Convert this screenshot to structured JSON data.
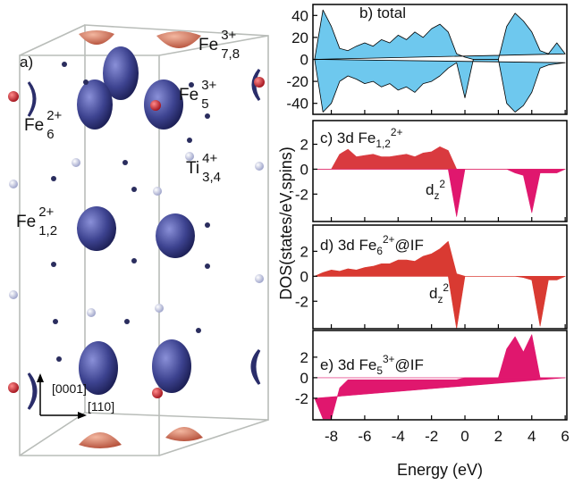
{
  "structure": {
    "panel": "a)",
    "labels": [
      {
        "text": "Fe",
        "sup": "3+",
        "sub": "7,8"
      },
      {
        "text": "Fe",
        "sup": "3+",
        "sub": "5"
      },
      {
        "text": "Fe",
        "sup": "2+",
        "sub": "6"
      },
      {
        "text": "Ti",
        "sup": "4+",
        "sub": "3,4"
      },
      {
        "text": "Fe",
        "sup": "2+",
        "sub": "1,2"
      }
    ],
    "directions": [
      "[0001]",
      "[110]"
    ]
  },
  "ylabel": "DOS(states/eV,spins)",
  "chart_data": [
    {
      "type": "area",
      "title": {
        "text": "b) total"
      },
      "stroke": "#000000",
      "x": [
        -9,
        -8.5,
        -8,
        -7.5,
        -7,
        -6.5,
        -6,
        -5.5,
        -5,
        -4.5,
        -4,
        -3.5,
        -3,
        -2.5,
        -2,
        -1.5,
        -1,
        -0.5,
        0,
        0.5,
        1,
        1.5,
        2,
        2.5,
        3,
        3.5,
        4,
        4.5,
        5,
        5.5,
        6
      ],
      "series": [
        {
          "color": "#6ec8ee",
          "values": [
            0,
            45,
            30,
            10,
            8,
            12,
            15,
            12,
            18,
            15,
            22,
            18,
            25,
            20,
            28,
            32,
            25,
            5,
            2,
            0,
            0,
            0,
            0,
            30,
            42,
            35,
            25,
            8,
            5,
            15,
            5
          ]
        },
        {
          "color": "#6ec8ee",
          "values": [
            0,
            -48,
            -40,
            -20,
            -15,
            -18,
            -22,
            -20,
            -25,
            -22,
            -28,
            -25,
            -30,
            -22,
            -20,
            -15,
            -8,
            -3,
            -35,
            0,
            0,
            0,
            0,
            -40,
            -48,
            -42,
            -30,
            -8,
            -5,
            -4,
            -3
          ]
        }
      ],
      "xlim": [
        -9.1,
        6.1
      ],
      "ylim": [
        -50,
        50
      ],
      "yticks": [
        40,
        20,
        0,
        -20,
        -40
      ]
    },
    {
      "type": "area",
      "title": {
        "text": "c) 3d Fe",
        "sub": "1,2",
        "sup": "2+"
      },
      "annotations": [
        {
          "text": "d",
          "sub": "z",
          "sup": "2"
        }
      ],
      "x": [
        -9,
        -8.5,
        -8,
        -7.5,
        -7,
        -6.5,
        -6,
        -5.5,
        -5,
        -4.5,
        -4,
        -3.5,
        -3,
        -2.5,
        -2,
        -1.5,
        -1,
        -0.5,
        0,
        0.5,
        1,
        1.5,
        2,
        2.5,
        3,
        3.5,
        4,
        4.5,
        5,
        5.5,
        6
      ],
      "series": [
        {
          "color": "#d93a3f",
          "values": [
            0,
            0,
            0,
            1.2,
            1.6,
            1,
            1.1,
            1.2,
            1,
            1,
            1.1,
            1.2,
            1,
            1.3,
            1.4,
            1.8,
            1.5,
            0,
            0,
            0,
            0,
            0,
            0,
            0,
            0,
            0,
            0,
            0,
            0,
            0,
            0
          ]
        },
        {
          "color": "#e0176e",
          "values": [
            0,
            0,
            0,
            0,
            0,
            0,
            0,
            0,
            0,
            0,
            0,
            0,
            0,
            0,
            0,
            0,
            0,
            -3.8,
            0,
            0,
            0,
            0,
            0,
            0,
            -0.3,
            -0.5,
            -3.5,
            -0.3,
            -0.3,
            -0.3,
            0
          ]
        }
      ],
      "xlim": [
        -9.1,
        6.1
      ],
      "ylim": [
        -4.2,
        3.9
      ],
      "yticks": [
        2,
        0,
        -2
      ]
    },
    {
      "type": "area",
      "title": {
        "text": "d) 3d Fe",
        "sub": "6",
        "sup": "2+",
        "rest": "@IF"
      },
      "annotations": [
        {
          "text": "d",
          "sub": "z",
          "sup": "2"
        }
      ],
      "x": [
        -9,
        -8.5,
        -8,
        -7.5,
        -7,
        -6.5,
        -6,
        -5.5,
        -5,
        -4.5,
        -4,
        -3.5,
        -3,
        -2.5,
        -2,
        -1.5,
        -1,
        -0.5,
        0,
        0.5,
        1,
        1.5,
        2,
        2.5,
        3,
        3.5,
        4,
        4.5,
        5,
        5.5,
        6
      ],
      "series": [
        {
          "color": "#d93a32",
          "values": [
            0,
            0.3,
            0.5,
            0.4,
            0.6,
            0.5,
            0.7,
            0.8,
            1,
            1,
            1.3,
            1.3,
            1.2,
            1.6,
            1.8,
            2.2,
            2.8,
            0.2,
            0,
            0,
            0,
            0,
            0,
            0,
            0,
            0,
            0,
            0,
            0,
            0,
            0
          ]
        },
        {
          "color": "#d93a32",
          "values": [
            0,
            0,
            0,
            0,
            0,
            0,
            0,
            0,
            0,
            0,
            0,
            0,
            0,
            0,
            0,
            0,
            0,
            -4.2,
            0,
            0,
            0,
            0,
            0,
            0,
            0,
            -0.1,
            -0.3,
            -4.0,
            -0.3,
            -0.3,
            0
          ]
        }
      ],
      "xlim": [
        -9.1,
        6.1
      ],
      "ylim": [
        -4.2,
        4.1
      ],
      "yticks": [
        2,
        0,
        -2
      ]
    },
    {
      "type": "area",
      "title": {
        "text": "e) 3d Fe",
        "sub": "5",
        "sup": "3+",
        "rest": "@IF"
      },
      "x": [
        -9,
        -8.5,
        -8,
        -7.5,
        -7,
        -6.5,
        -6,
        -5.5,
        -5,
        -4.5,
        -4,
        -3.5,
        -3,
        -2.5,
        -2,
        -1.5,
        -1,
        -0.5,
        0,
        0.5,
        1,
        1.5,
        2,
        2.5,
        3,
        3.5,
        4,
        4.5,
        5,
        5.5,
        6
      ],
      "series": [
        {
          "color": "#e0176e",
          "values": [
            0,
            0,
            0,
            0,
            0,
            0,
            0,
            0,
            0,
            0,
            0,
            0,
            0,
            0,
            0,
            0,
            0,
            0,
            0,
            0,
            0,
            0,
            0,
            2.8,
            4,
            2.5,
            4.2,
            0,
            0,
            0,
            0
          ]
        },
        {
          "color": "#e0176e",
          "values": [
            -2,
            -4,
            -4,
            -1,
            -0.2,
            -0.2,
            -0.2,
            -0.2,
            -0.2,
            -0.2,
            -0.2,
            -0.2,
            -0.2,
            -0.2,
            -0.2,
            -0.2,
            -0.2,
            -0.2,
            0,
            0,
            0,
            0,
            0,
            0,
            0,
            0,
            0,
            0,
            0,
            0,
            0
          ]
        }
      ],
      "xlim": [
        -9.1,
        6.1
      ],
      "ylim": [
        -4.1,
        4.6
      ],
      "yticks": [
        2,
        0,
        -2
      ],
      "xticks": [
        -8,
        -6,
        -4,
        -2,
        0,
        2,
        4,
        6
      ],
      "xlabel": "Energy (eV)"
    }
  ]
}
